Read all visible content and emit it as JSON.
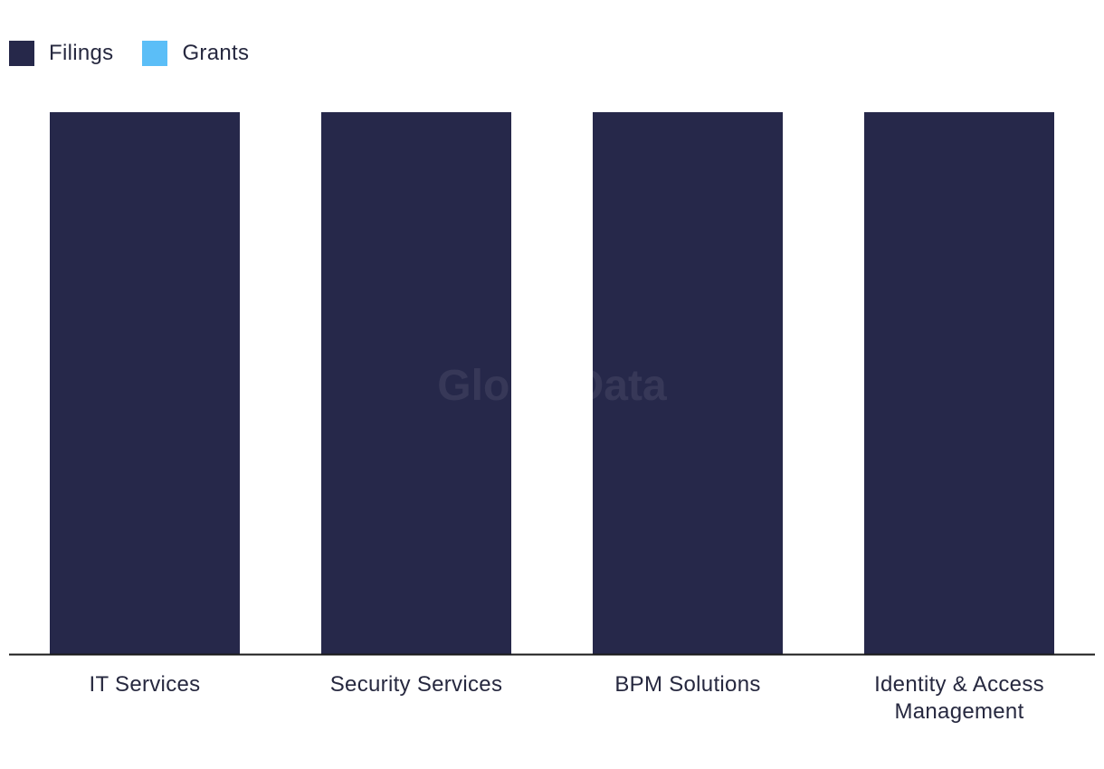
{
  "legend": {
    "items": [
      {
        "label": "Filings",
        "color": "#26284a"
      },
      {
        "label": "Grants",
        "color": "#5bbef7"
      }
    ]
  },
  "watermark": "GlobalData",
  "chart_data": {
    "type": "bar",
    "title": "",
    "xlabel": "",
    "ylabel": "",
    "categories": [
      [
        "IT Services"
      ],
      [
        "Security Services"
      ],
      [
        "BPM Solutions"
      ],
      [
        "Identity & Access",
        "Management"
      ]
    ],
    "series": [
      {
        "name": "Filings",
        "color": "#26284a",
        "values": [
          100,
          100,
          100,
          100
        ]
      },
      {
        "name": "Grants",
        "color": "#5bbef7",
        "values": [
          0,
          0,
          0,
          0
        ]
      }
    ],
    "ylim": [
      0,
      100
    ],
    "grid": false,
    "legend_position": "top-left"
  }
}
